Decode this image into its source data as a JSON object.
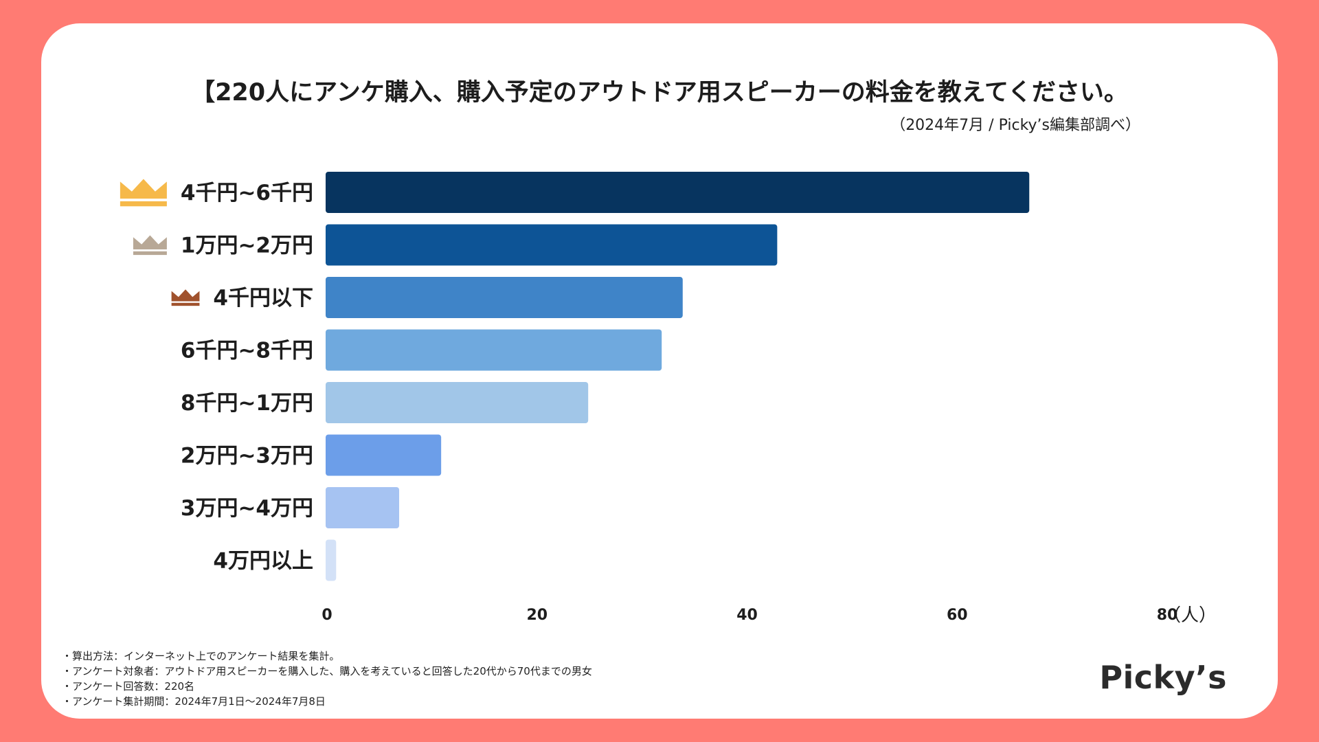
{
  "title": "【220人にアンケ購入、購入予定のアウトドア用スピーカーの料金を教えてください。",
  "subtitle": "（2024年7月 / Picky’s編集部調べ）",
  "brand": "Picky’s",
  "notes": [
    "・算出方法：インターネット上でのアンケート結果を集計。",
    "・アンケート対象者：アウトドア用スピーカーを購入した、購入を考えていると回答した20代から70代までの男女",
    "・アンケート回答数：220名",
    "・アンケート集計期間：2024年7月1日〜2024年7月8日"
  ],
  "colors": {
    "background": "#ff7b73",
    "gold": "#f6b94a",
    "silver": "#b8a896",
    "bronze": "#a0522d"
  },
  "chart_data": {
    "type": "bar",
    "orientation": "horizontal",
    "categories": [
      "4千円~6千円",
      "1万円~2万円",
      "4千円以下",
      "6千円~8千円",
      "8千円~1万円",
      "2万円~3万円",
      "3万円~4万円",
      "4万円以上"
    ],
    "values": [
      67,
      43,
      34,
      32,
      25,
      11,
      7,
      1
    ],
    "bar_colors": [
      "#07345f",
      "#0d5496",
      "#3f84c8",
      "#6fa9de",
      "#a1c6e8",
      "#6c9ee9",
      "#a6c3f2",
      "#d3e1f7"
    ],
    "ranks": [
      "gold",
      "silver",
      "bronze",
      "",
      "",
      "",
      "",
      ""
    ],
    "x_ticks": [
      0,
      20,
      40,
      60,
      80
    ],
    "xlim": [
      0,
      80
    ],
    "unit": "（人）",
    "grid": false
  }
}
